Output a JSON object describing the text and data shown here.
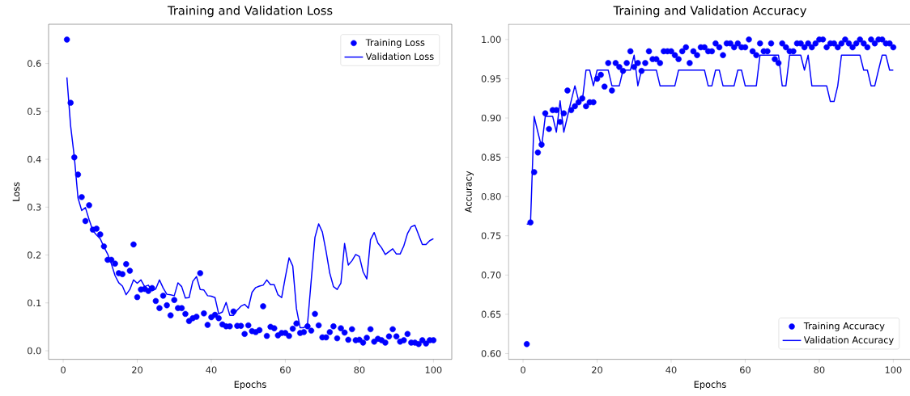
{
  "chart_data": [
    {
      "type": "line",
      "title": "Training and Validation Loss",
      "xlabel": "Epochs",
      "ylabel": "Loss",
      "x": [
        1,
        2,
        3,
        4,
        5,
        6,
        7,
        8,
        9,
        10,
        11,
        12,
        13,
        14,
        15,
        16,
        17,
        18,
        19,
        20,
        21,
        22,
        23,
        24,
        25,
        26,
        27,
        28,
        29,
        30,
        31,
        32,
        33,
        34,
        35,
        36,
        37,
        38,
        39,
        40,
        41,
        42,
        43,
        44,
        45,
        46,
        47,
        48,
        49,
        50,
        51,
        52,
        53,
        54,
        55,
        56,
        57,
        58,
        59,
        60,
        61,
        62,
        63,
        64,
        65,
        66,
        67,
        68,
        69,
        70,
        71,
        72,
        73,
        74,
        75,
        76,
        77,
        78,
        79,
        80,
        81,
        82,
        83,
        84,
        85,
        86,
        87,
        88,
        89,
        90,
        91,
        92,
        93,
        94,
        95,
        96,
        97,
        98,
        99,
        100
      ],
      "series": [
        {
          "name": "Training Loss",
          "type": "scatter",
          "marker": "circle",
          "color": "#0000ff",
          "values": [
            0.65,
            0.518,
            0.404,
            0.368,
            0.321,
            0.271,
            0.304,
            0.253,
            0.255,
            0.243,
            0.218,
            0.19,
            0.19,
            0.182,
            0.162,
            0.16,
            0.181,
            0.167,
            0.222,
            0.112,
            0.128,
            0.129,
            0.125,
            0.131,
            0.104,
            0.089,
            0.115,
            0.095,
            0.074,
            0.106,
            0.089,
            0.089,
            0.077,
            0.062,
            0.068,
            0.071,
            0.162,
            0.078,
            0.054,
            0.07,
            0.075,
            0.068,
            0.055,
            0.051,
            0.051,
            0.082,
            0.052,
            0.052,
            0.035,
            0.053,
            0.041,
            0.039,
            0.043,
            0.093,
            0.031,
            0.05,
            0.047,
            0.032,
            0.037,
            0.037,
            0.031,
            0.046,
            0.057,
            0.037,
            0.039,
            0.051,
            0.042,
            0.077,
            0.053,
            0.028,
            0.028,
            0.039,
            0.051,
            0.026,
            0.047,
            0.038,
            0.023,
            0.045,
            0.022,
            0.023,
            0.017,
            0.027,
            0.045,
            0.019,
            0.025,
            0.022,
            0.017,
            0.03,
            0.045,
            0.03,
            0.019,
            0.022,
            0.035,
            0.017,
            0.017,
            0.014,
            0.022,
            0.015,
            0.022,
            0.022
          ]
        },
        {
          "name": "Validation Loss",
          "color": "#0000ff",
          "values": [
            0.571,
            0.47,
            0.405,
            0.319,
            0.293,
            0.299,
            0.274,
            0.251,
            0.242,
            0.234,
            0.217,
            0.202,
            0.182,
            0.157,
            0.142,
            0.135,
            0.117,
            0.128,
            0.148,
            0.141,
            0.148,
            0.134,
            0.137,
            0.125,
            0.129,
            0.148,
            0.131,
            0.118,
            0.117,
            0.115,
            0.142,
            0.134,
            0.11,
            0.111,
            0.145,
            0.155,
            0.128,
            0.127,
            0.115,
            0.114,
            0.111,
            0.077,
            0.081,
            0.101,
            0.074,
            0.074,
            0.085,
            0.093,
            0.097,
            0.089,
            0.122,
            0.132,
            0.135,
            0.137,
            0.148,
            0.138,
            0.138,
            0.117,
            0.111,
            0.154,
            0.194,
            0.177,
            0.088,
            0.048,
            0.048,
            0.057,
            0.148,
            0.237,
            0.265,
            0.248,
            0.208,
            0.162,
            0.134,
            0.128,
            0.141,
            0.224,
            0.179,
            0.188,
            0.201,
            0.197,
            0.165,
            0.15,
            0.232,
            0.247,
            0.225,
            0.215,
            0.201,
            0.207,
            0.213,
            0.202,
            0.202,
            0.219,
            0.245,
            0.259,
            0.262,
            0.242,
            0.222,
            0.222,
            0.23,
            0.234
          ]
        }
      ],
      "xlim": [
        -3.95,
        104.95
      ],
      "xticks": [
        0,
        20,
        40,
        60,
        80,
        100
      ],
      "ylim": [
        -0.018,
        0.682
      ],
      "yticks": [
        {
          "value": 0,
          "label": "0.0"
        },
        {
          "value": 0.1,
          "label": "0.1"
        },
        {
          "value": 0.2,
          "label": "0.2"
        },
        {
          "value": 0.3,
          "label": "0.3"
        },
        {
          "value": 0.4,
          "label": "0.4"
        },
        {
          "value": 0.5,
          "label": "0.5"
        },
        {
          "value": 0.6,
          "label": "0.6"
        }
      ],
      "legend": "top right"
    },
    {
      "type": "line",
      "title": "Training and Validation Accuracy",
      "xlabel": "Epochs",
      "ylabel": "Accuracy",
      "x": [
        1,
        2,
        3,
        4,
        5,
        6,
        7,
        8,
        9,
        10,
        11,
        12,
        13,
        14,
        15,
        16,
        17,
        18,
        19,
        20,
        21,
        22,
        23,
        24,
        25,
        26,
        27,
        28,
        29,
        30,
        31,
        32,
        33,
        34,
        35,
        36,
        37,
        38,
        39,
        40,
        41,
        42,
        43,
        44,
        45,
        46,
        47,
        48,
        49,
        50,
        51,
        52,
        53,
        54,
        55,
        56,
        57,
        58,
        59,
        60,
        61,
        62,
        63,
        64,
        65,
        66,
        67,
        68,
        69,
        70,
        71,
        72,
        73,
        74,
        75,
        76,
        77,
        78,
        79,
        80,
        81,
        82,
        83,
        84,
        85,
        86,
        87,
        88,
        89,
        90,
        91,
        92,
        93,
        94,
        95,
        96,
        97,
        98,
        99,
        100
      ],
      "series": [
        {
          "name": "Training Accuracy",
          "type": "scatter",
          "marker": "circle",
          "color": "#0000ff",
          "values": [
            0.612,
            0.767,
            0.831,
            0.856,
            0.866,
            0.906,
            0.886,
            0.91,
            0.91,
            0.895,
            0.906,
            0.935,
            0.91,
            0.915,
            0.92,
            0.925,
            0.915,
            0.92,
            0.92,
            0.95,
            0.955,
            0.94,
            0.97,
            0.935,
            0.97,
            0.965,
            0.96,
            0.97,
            0.985,
            0.965,
            0.97,
            0.96,
            0.97,
            0.985,
            0.975,
            0.975,
            0.97,
            0.985,
            0.985,
            0.985,
            0.98,
            0.975,
            0.985,
            0.99,
            0.97,
            0.985,
            0.98,
            0.99,
            0.99,
            0.985,
            0.985,
            0.995,
            0.99,
            0.98,
            0.995,
            0.995,
            0.99,
            0.995,
            0.99,
            0.99,
            1.0,
            0.985,
            0.98,
            0.995,
            0.985,
            0.985,
            0.995,
            0.975,
            0.97,
            0.995,
            0.99,
            0.985,
            0.985,
            0.995,
            0.995,
            0.99,
            0.995,
            0.99,
            0.995,
            1.0,
            1.0,
            0.99,
            0.995,
            0.995,
            0.99,
            0.995,
            1.0,
            0.995,
            0.99,
            0.995,
            1.0,
            0.995,
            0.99,
            1.0,
            0.995,
            1.0,
            1.0,
            0.995,
            0.995,
            0.99
          ]
        },
        {
          "name": "Validation Accuracy",
          "color": "#0000ff",
          "values": [
            0.765,
            0.765,
            0.902,
            0.882,
            0.863,
            0.902,
            0.902,
            0.902,
            0.882,
            0.922,
            0.882,
            0.902,
            0.922,
            0.941,
            0.922,
            0.922,
            0.961,
            0.961,
            0.941,
            0.961,
            0.961,
            0.961,
            0.961,
            0.941,
            0.941,
            0.941,
            0.961,
            0.961,
            0.961,
            0.98,
            0.941,
            0.961,
            0.961,
            0.961,
            0.961,
            0.961,
            0.941,
            0.941,
            0.941,
            0.941,
            0.941,
            0.961,
            0.961,
            0.961,
            0.961,
            0.961,
            0.961,
            0.961,
            0.961,
            0.941,
            0.941,
            0.961,
            0.961,
            0.941,
            0.941,
            0.941,
            0.941,
            0.961,
            0.961,
            0.941,
            0.941,
            0.941,
            0.941,
            0.98,
            0.98,
            0.98,
            0.98,
            0.98,
            0.98,
            0.941,
            0.941,
            0.98,
            0.98,
            0.98,
            0.98,
            0.961,
            0.98,
            0.941,
            0.941,
            0.941,
            0.941,
            0.941,
            0.921,
            0.921,
            0.941,
            0.98,
            0.98,
            0.98,
            0.98,
            0.98,
            0.98,
            0.961,
            0.961,
            0.941,
            0.941,
            0.961,
            0.98,
            0.98,
            0.961,
            0.961
          ]
        }
      ],
      "xlim": [
        -3.95,
        104.95
      ],
      "xticks": [
        0,
        20,
        40,
        60,
        80,
        100
      ],
      "ylim": [
        0.5926,
        1.0194
      ],
      "yticks": [
        {
          "value": 0.6,
          "label": "0.60"
        },
        {
          "value": 0.65,
          "label": "0.65"
        },
        {
          "value": 0.7,
          "label": "0.70"
        },
        {
          "value": 0.75,
          "label": "0.75"
        },
        {
          "value": 0.8,
          "label": "0.80"
        },
        {
          "value": 0.85,
          "label": "0.85"
        },
        {
          "value": 0.9,
          "label": "0.90"
        },
        {
          "value": 0.95,
          "label": "0.95"
        },
        {
          "value": 1.0,
          "label": "1.00"
        }
      ],
      "legend": "bottom right"
    }
  ]
}
